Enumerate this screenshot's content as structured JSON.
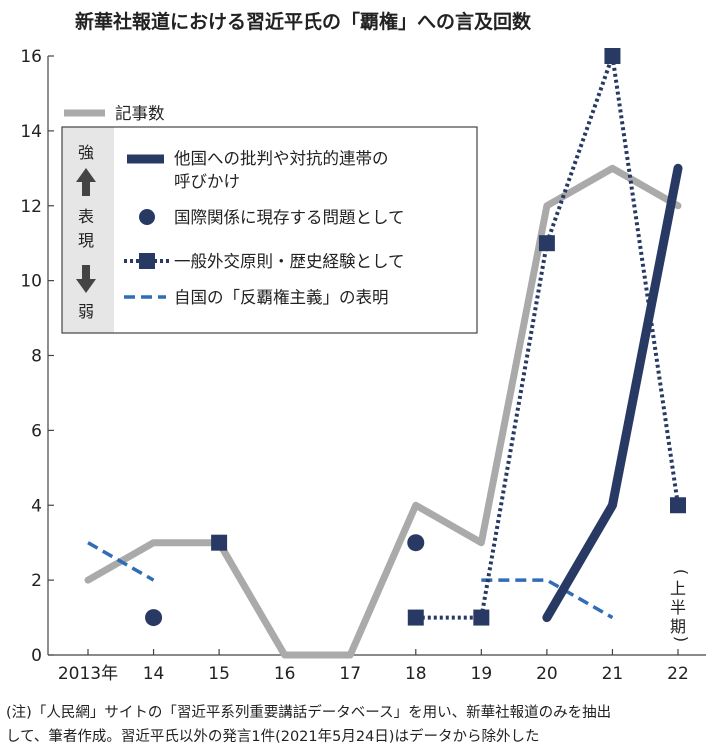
{
  "chart_data": {
    "type": "line",
    "title": "新華社報道における習近平氏の「覇権」への言及回数",
    "categories": [
      "2013年",
      "14",
      "15",
      "16",
      "17",
      "18",
      "19",
      "20",
      "21",
      "22"
    ],
    "x_positions": [
      2013,
      2014,
      2015,
      2016,
      2017,
      2018,
      2019,
      2020,
      2021,
      2022
    ],
    "ylim": [
      0,
      16
    ],
    "yticks": [
      0,
      2,
      4,
      6,
      8,
      10,
      12,
      14,
      16
    ],
    "grid": false,
    "legend_position": "top-left",
    "series": [
      {
        "name": "記事数",
        "style": "gray-thick-line",
        "color": "#aaaaaa",
        "points": [
          [
            2013,
            2
          ],
          [
            2014,
            3
          ],
          [
            2015,
            3
          ],
          [
            2016,
            0
          ],
          [
            2017,
            0
          ],
          [
            2018,
            4
          ],
          [
            2019,
            3
          ],
          [
            2020,
            12
          ],
          [
            2021,
            13
          ],
          [
            2022,
            12
          ]
        ]
      },
      {
        "name": "他国への批判や対抗的連帯の呼びかけ",
        "label_lines": [
          "他国への批判や対抗的連帯の",
          "呼びかけ"
        ],
        "style": "navy-thick-line",
        "color": "#283a63",
        "points": [
          [
            2020,
            1
          ],
          [
            2021,
            4
          ],
          [
            2022,
            13
          ]
        ]
      },
      {
        "name": "国際関係に現存する問題として",
        "style": "navy-circle-markers",
        "color": "#283a63",
        "points": [
          [
            2014,
            1
          ],
          [
            2018,
            3
          ]
        ]
      },
      {
        "name": "一般外交原則・歴史経験として",
        "style": "navy-dotted-squares",
        "color": "#283a63",
        "points": [
          [
            2015,
            3
          ],
          [
            2018,
            1
          ],
          [
            2019,
            1
          ],
          [
            2020,
            11
          ],
          [
            2021,
            16
          ],
          [
            2022,
            4
          ]
        ],
        "segments": [
          [
            2018,
            2019
          ],
          [
            2019,
            2020
          ],
          [
            2020,
            2021
          ],
          [
            2021,
            2022
          ]
        ]
      },
      {
        "name": "自国の「反覇権主義」の表明",
        "style": "blue-dashed-line",
        "color": "#2f6db5",
        "segments": [
          [
            [
              2013,
              3
            ],
            [
              2014,
              2
            ]
          ],
          [
            [
              2019,
              2
            ],
            [
              2020,
              2
            ],
            [
              2021,
              1
            ]
          ]
        ]
      }
    ],
    "annotations": [
      "(上半期)"
    ],
    "scale_label": {
      "top": "強",
      "middle": "表現",
      "bottom": "弱"
    }
  },
  "note": {
    "line1": "(注)「人民網」サイトの「習近平系列重要講話データベース」を用い、新華社報道のみを抽出",
    "line2": "して、筆者作成。習近平氏以外の発言1件(2021年5月24日)はデータから除外した"
  }
}
